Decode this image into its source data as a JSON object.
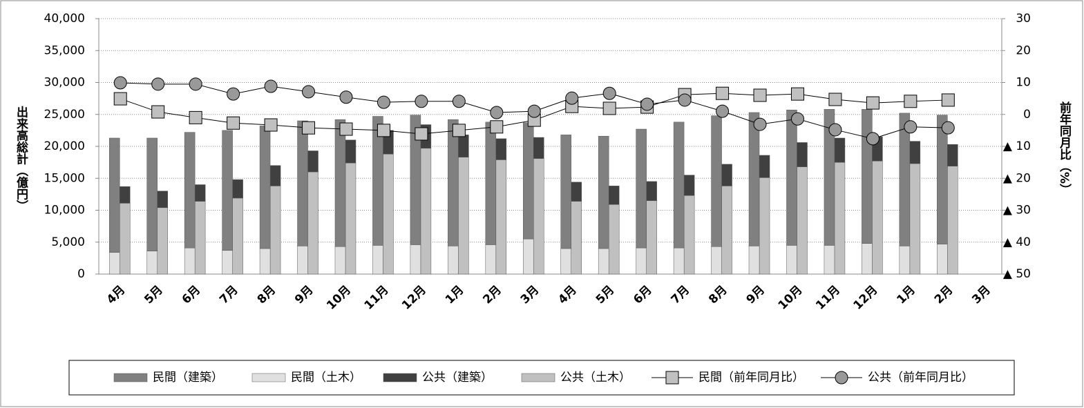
{
  "chart_data": {
    "type": "bar",
    "categories": [
      "4月",
      "5月",
      "6月",
      "7月",
      "8月",
      "9月",
      "10月",
      "11月",
      "12月",
      "1月",
      "2月",
      "3月",
      "4月",
      "5月",
      "6月",
      "7月",
      "8月",
      "9月",
      "10月",
      "11月",
      "12月",
      "1月",
      "2月",
      "3月"
    ],
    "y_label": "出来高総計（億円）",
    "y2_label": "前年同月比（%）",
    "ylim": [
      0,
      40000
    ],
    "yticks": [
      0,
      {
        "value": 5000,
        "label": "5,000"
      },
      {
        "value": 10000,
        "label": "10,000"
      },
      {
        "value": 15000,
        "label": "15,000"
      },
      {
        "value": 20000,
        "label": "20,000"
      },
      {
        "value": 25000,
        "label": "25,000"
      },
      {
        "value": 30000,
        "label": "30,000"
      },
      {
        "value": 35000,
        "label": "35,000"
      },
      {
        "value": 40000,
        "label": "40,000"
      }
    ],
    "y2lim": [
      -50,
      30
    ],
    "y2ticks": [
      30,
      20,
      10,
      0,
      {
        "value": -10,
        "label": "▲ 10"
      },
      {
        "value": -20,
        "label": "▲ 20"
      },
      {
        "value": -30,
        "label": "▲ 30"
      },
      {
        "value": -40,
        "label": "▲ 40"
      },
      {
        "value": -50,
        "label": "▲ 50"
      }
    ],
    "grid": true,
    "legend": "bottom",
    "series": [
      {
        "name": "民間（建築）",
        "color": "#808080",
        "stack": "private",
        "values": [
          17900,
          17700,
          18100,
          18800,
          19200,
          19600,
          19900,
          20200,
          20300,
          19800,
          19200,
          18200,
          17800,
          17600,
          18600,
          19700,
          20500,
          20900,
          21200,
          21300,
          21000,
          20800,
          20200,
          null
        ]
      },
      {
        "name": "民間（土木）",
        "color": "#e0e0e0",
        "stack": "private",
        "values": [
          3400,
          3600,
          4100,
          3700,
          4000,
          4400,
          4300,
          4500,
          4600,
          4400,
          4600,
          5500,
          4000,
          4000,
          4100,
          4100,
          4300,
          4400,
          4500,
          4500,
          4800,
          4400,
          4700,
          null
        ]
      },
      {
        "name": "公共（建築）",
        "color": "#404040",
        "stack": "public",
        "values": [
          2600,
          2600,
          2600,
          2900,
          3200,
          3300,
          3600,
          3700,
          3700,
          3500,
          3300,
          3300,
          3000,
          2900,
          3000,
          3200,
          3400,
          3500,
          3800,
          3800,
          3800,
          3500,
          3400,
          null
        ]
      },
      {
        "name": "公共（土木）",
        "color": "#c0c0c0",
        "stack": "public",
        "values": [
          11100,
          10400,
          11400,
          11900,
          13800,
          16000,
          17400,
          18800,
          19700,
          18300,
          17900,
          18100,
          11400,
          10900,
          11500,
          12300,
          13800,
          15100,
          16800,
          17500,
          17700,
          17300,
          16900,
          null
        ]
      },
      {
        "name": "民間（前年同月比）",
        "color": "#c0c0c0",
        "type": "line",
        "marker": "square",
        "axis": "y2",
        "values": [
          4.9,
          0.8,
          -1,
          -2.7,
          -3.3,
          -4.2,
          -4.6,
          -5,
          -6.1,
          -5,
          -3.9,
          -1.8,
          2.5,
          1.9,
          2.3,
          6.2,
          6.6,
          6,
          6.4,
          4.7,
          3.6,
          4.1,
          4.5,
          null
        ]
      },
      {
        "name": "公共（前年同月比）",
        "color": "#999999",
        "type": "line",
        "marker": "circle",
        "axis": "y2",
        "values": [
          9.9,
          9.5,
          9.5,
          6.4,
          8.8,
          7.1,
          5.4,
          3.8,
          4.1,
          4.1,
          0.6,
          1,
          5.1,
          6.6,
          3.2,
          4.5,
          1,
          -3.1,
          -1.4,
          -4.8,
          -7.6,
          -3.9,
          -4.2,
          null
        ]
      }
    ]
  }
}
